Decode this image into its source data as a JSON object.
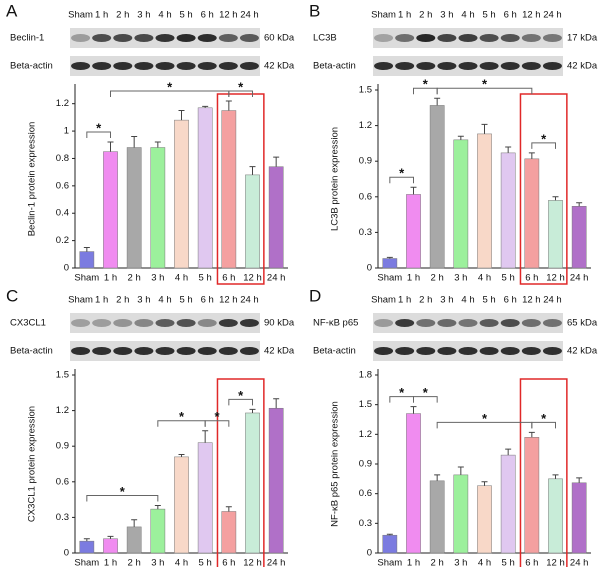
{
  "chart_data": [
    {
      "type": "bar",
      "panel": "A",
      "blot": {
        "lanes": [
          "Sham",
          "1 h",
          "2 h",
          "3 h",
          "4 h",
          "5 h",
          "6 h",
          "12 h",
          "24 h"
        ],
        "rows": [
          [
            "Beclin-1",
            "60 kDa"
          ],
          [
            "Beta-actin",
            "42 kDa"
          ]
        ]
      },
      "ylabel": "Beclin-1 protein expression",
      "categories": [
        "Sham",
        "1 h",
        "2 h",
        "3 h",
        "4 h",
        "5 h",
        "6 h",
        "12 h",
        "24 h"
      ],
      "values": [
        0.12,
        0.85,
        0.88,
        0.88,
        1.08,
        1.17,
        1.15,
        0.68,
        0.74
      ],
      "errors": [
        0.03,
        0.07,
        0.08,
        0.04,
        0.07,
        0.01,
        0.07,
        0.06,
        0.07
      ],
      "colors": [
        "#7b7be0",
        "#f08cf0",
        "#a8a8a8",
        "#9cf09c",
        "#f8d8c8",
        "#e0c8f0",
        "#f4a0a0",
        "#c8ecd8",
        "#b070c8"
      ],
      "ylim": [
        0,
        1.3
      ],
      "yticks": [
        0,
        0.2,
        0.4,
        0.6,
        0.8,
        1,
        1.2
      ],
      "brackets": [
        {
          "bars": [
            0,
            1
          ],
          "label": "*"
        },
        {
          "bars": [
            1,
            6
          ],
          "label": "*"
        },
        {
          "bars": [
            6,
            7
          ],
          "label": "*"
        }
      ],
      "highlight": [
        6,
        7
      ]
    },
    {
      "type": "bar",
      "panel": "B",
      "blot": {
        "lanes": [
          "Sham",
          "1 h",
          "2 h",
          "3 h",
          "4 h",
          "5 h",
          "6 h",
          "12 h",
          "24 h"
        ],
        "rows": [
          [
            "LC3B",
            "17 kDa"
          ],
          [
            "Beta-actin",
            "42 kDa"
          ]
        ]
      },
      "ylabel": "LC3B protein expression",
      "categories": [
        "Sham",
        "1 h",
        "2 h",
        "3 h",
        "4 h",
        "5 h",
        "6 h",
        "12 h",
        "24 h"
      ],
      "values": [
        0.08,
        0.62,
        1.37,
        1.08,
        1.13,
        0.97,
        0.92,
        0.57,
        0.52
      ],
      "errors": [
        0.01,
        0.06,
        0.06,
        0.03,
        0.08,
        0.05,
        0.05,
        0.03,
        0.03
      ],
      "colors": [
        "#7b7be0",
        "#f08cf0",
        "#a8a8a8",
        "#9cf09c",
        "#f8d8c8",
        "#e0c8f0",
        "#f4a0a0",
        "#c8ecd8",
        "#b070c8"
      ],
      "ylim": [
        0,
        1.5
      ],
      "yticks": [
        0,
        0.3,
        0.6,
        0.9,
        1.2,
        1.5
      ],
      "brackets": [
        {
          "bars": [
            0,
            1
          ],
          "label": "*"
        },
        {
          "bars": [
            1,
            2
          ],
          "label": "*"
        },
        {
          "bars": [
            2,
            6
          ],
          "label": "*"
        },
        {
          "bars": [
            6,
            7
          ],
          "label": "*"
        }
      ],
      "highlight": [
        6,
        7
      ]
    },
    {
      "type": "bar",
      "panel": "C",
      "blot": {
        "lanes": [
          "Sham",
          "1 h",
          "2 h",
          "3 h",
          "4 h",
          "5 h",
          "6 h",
          "12 h",
          "24 h"
        ],
        "rows": [
          [
            "CX3CL1",
            "90 kDa"
          ],
          [
            "Beta-actin",
            "42 kDa"
          ]
        ]
      },
      "ylabel": "CX3CL1 protein expression",
      "categories": [
        "Sham",
        "1 h",
        "2 h",
        "3 h",
        "4 h",
        "5 h",
        "6 h",
        "12 h",
        "24 h"
      ],
      "values": [
        0.1,
        0.12,
        0.22,
        0.37,
        0.81,
        0.93,
        0.35,
        1.18,
        1.22
      ],
      "errors": [
        0.02,
        0.02,
        0.06,
        0.03,
        0.02,
        0.1,
        0.04,
        0.03,
        0.08
      ],
      "colors": [
        "#7b7be0",
        "#f08cf0",
        "#a8a8a8",
        "#9cf09c",
        "#f8d8c8",
        "#e0c8f0",
        "#f4a0a0",
        "#c8ecd8",
        "#b070c8"
      ],
      "ylim": [
        0,
        1.5
      ],
      "yticks": [
        0,
        0.3,
        0.6,
        0.9,
        1.2,
        1.5
      ],
      "brackets": [
        {
          "bars": [
            0,
            3
          ],
          "label": "*"
        },
        {
          "bars": [
            3,
            5
          ],
          "label": "*"
        },
        {
          "bars": [
            5,
            6
          ],
          "label": "*"
        },
        {
          "bars": [
            6,
            7
          ],
          "label": "*"
        }
      ],
      "highlight": [
        6,
        7
      ]
    },
    {
      "type": "bar",
      "panel": "D",
      "blot": {
        "lanes": [
          "Sham",
          "1 h",
          "2 h",
          "3 h",
          "4 h",
          "5 h",
          "6 h",
          "12 h",
          "24 h"
        ],
        "rows": [
          [
            "NF-κB p65",
            "65 kDa"
          ],
          [
            "Beta-actin",
            "42 kDa"
          ]
        ]
      },
      "ylabel": "NF-κB p65 protein expression",
      "categories": [
        "Sham",
        "1 h",
        "2 h",
        "3 h",
        "4 h",
        "5 h",
        "6 h",
        "12 h",
        "24 h"
      ],
      "values": [
        0.18,
        1.41,
        0.73,
        0.79,
        0.68,
        0.99,
        1.17,
        0.75,
        0.71
      ],
      "errors": [
        0.01,
        0.07,
        0.06,
        0.08,
        0.04,
        0.06,
        0.05,
        0.04,
        0.05
      ],
      "colors": [
        "#7b7be0",
        "#f08cf0",
        "#a8a8a8",
        "#9cf09c",
        "#f8d8c8",
        "#e0c8f0",
        "#f4a0a0",
        "#c8ecd8",
        "#b070c8"
      ],
      "ylim": [
        0,
        1.8
      ],
      "yticks": [
        0,
        0.3,
        0.6,
        0.9,
        1.2,
        1.5,
        1.8
      ],
      "brackets": [
        {
          "bars": [
            0,
            1
          ],
          "label": "*"
        },
        {
          "bars": [
            1,
            2
          ],
          "label": "*"
        },
        {
          "bars": [
            2,
            6
          ],
          "label": "*"
        },
        {
          "bars": [
            6,
            7
          ],
          "label": "*"
        }
      ],
      "highlight": [
        6,
        7
      ]
    }
  ]
}
